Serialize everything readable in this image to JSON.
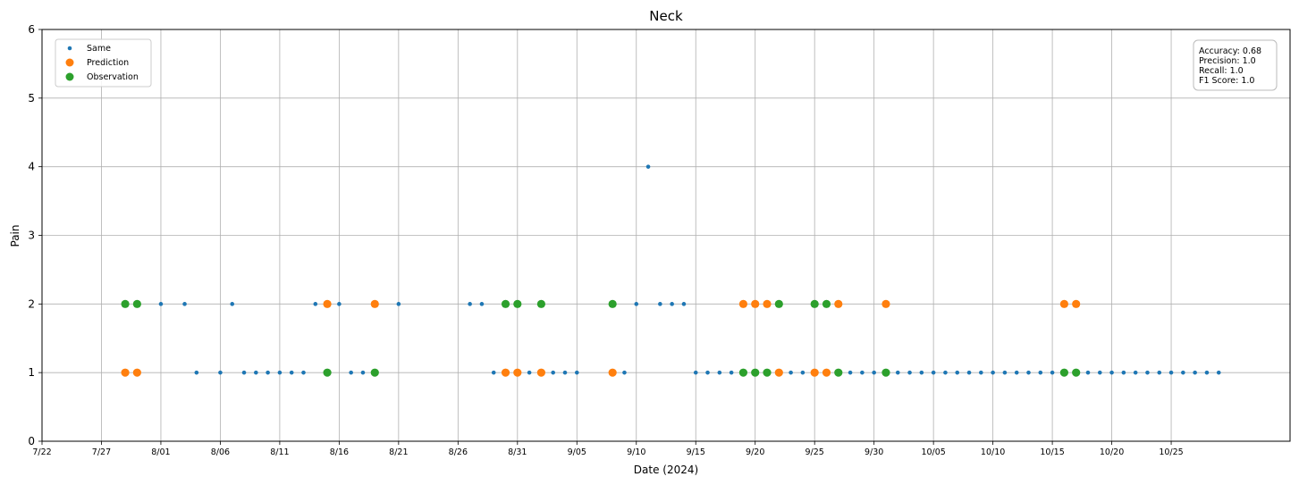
{
  "chart_data": {
    "type": "scatter",
    "title": "Neck",
    "xlabel": "Date (2024)",
    "ylabel": "Pain",
    "xlim": [
      "2024-07-22",
      "2024-11-04"
    ],
    "ylim": [
      0,
      6
    ],
    "x_ticks": [
      "2024-07-22",
      "2024-07-27",
      "2024-08-01",
      "2024-08-06",
      "2024-08-11",
      "2024-08-16",
      "2024-08-21",
      "2024-08-26",
      "2024-08-31",
      "2024-09-05",
      "2024-09-10",
      "2024-09-15",
      "2024-09-20",
      "2024-09-25",
      "2024-09-30",
      "2024-10-05",
      "2024-10-10",
      "2024-10-15",
      "2024-10-20",
      "2024-10-25"
    ],
    "x_tick_labels": [
      "7/22",
      "7/27",
      "8/01",
      "8/06",
      "8/11",
      "8/16",
      "8/21",
      "8/26",
      "8/31",
      "9/05",
      "9/10",
      "9/15",
      "9/20",
      "9/25",
      "9/30",
      "10/05",
      "10/10",
      "10/15",
      "10/20",
      "10/25"
    ],
    "y_ticks": [
      0,
      1,
      2,
      3,
      4,
      5,
      6
    ],
    "grid": true,
    "legend_position": "top-left",
    "metrics_box": {
      "position": "top-right",
      "lines": [
        "Accuracy: 0.68",
        "Precision: 1.0",
        "Recall: 1.0",
        "F1 Score: 1.0"
      ]
    },
    "series": [
      {
        "name": "Same",
        "color": "#1f77b4",
        "marker": "small",
        "points": [
          [
            "2024-08-01",
            2
          ],
          [
            "2024-08-03",
            2
          ],
          [
            "2024-08-07",
            2
          ],
          [
            "2024-08-14",
            2
          ],
          [
            "2024-08-16",
            2
          ],
          [
            "2024-08-21",
            2
          ],
          [
            "2024-08-27",
            2
          ],
          [
            "2024-08-28",
            2
          ],
          [
            "2024-09-10",
            2
          ],
          [
            "2024-09-12",
            2
          ],
          [
            "2024-09-13",
            2
          ],
          [
            "2024-09-14",
            2
          ],
          [
            "2024-09-11",
            4
          ],
          [
            "2024-08-04",
            1
          ],
          [
            "2024-08-06",
            1
          ],
          [
            "2024-08-08",
            1
          ],
          [
            "2024-08-09",
            1
          ],
          [
            "2024-08-10",
            1
          ],
          [
            "2024-08-11",
            1
          ],
          [
            "2024-08-12",
            1
          ],
          [
            "2024-08-13",
            1
          ],
          [
            "2024-08-17",
            1
          ],
          [
            "2024-08-18",
            1
          ],
          [
            "2024-08-29",
            1
          ],
          [
            "2024-09-01",
            1
          ],
          [
            "2024-09-03",
            1
          ],
          [
            "2024-09-04",
            1
          ],
          [
            "2024-09-05",
            1
          ],
          [
            "2024-09-09",
            1
          ],
          [
            "2024-09-15",
            1
          ],
          [
            "2024-09-16",
            1
          ],
          [
            "2024-09-17",
            1
          ],
          [
            "2024-09-18",
            1
          ],
          [
            "2024-09-23",
            1
          ],
          [
            "2024-09-24",
            1
          ],
          [
            "2024-09-28",
            1
          ],
          [
            "2024-09-29",
            1
          ],
          [
            "2024-09-30",
            1
          ],
          [
            "2024-10-02",
            1
          ],
          [
            "2024-10-03",
            1
          ],
          [
            "2024-10-04",
            1
          ],
          [
            "2024-10-05",
            1
          ],
          [
            "2024-10-06",
            1
          ],
          [
            "2024-10-07",
            1
          ],
          [
            "2024-10-08",
            1
          ],
          [
            "2024-10-09",
            1
          ],
          [
            "2024-10-10",
            1
          ],
          [
            "2024-10-11",
            1
          ],
          [
            "2024-10-12",
            1
          ],
          [
            "2024-10-13",
            1
          ],
          [
            "2024-10-14",
            1
          ],
          [
            "2024-10-15",
            1
          ],
          [
            "2024-10-18",
            1
          ],
          [
            "2024-10-19",
            1
          ],
          [
            "2024-10-20",
            1
          ],
          [
            "2024-10-21",
            1
          ],
          [
            "2024-10-22",
            1
          ],
          [
            "2024-10-23",
            1
          ],
          [
            "2024-10-24",
            1
          ],
          [
            "2024-10-25",
            1
          ],
          [
            "2024-10-26",
            1
          ],
          [
            "2024-10-27",
            1
          ],
          [
            "2024-10-28",
            1
          ],
          [
            "2024-10-29",
            1
          ]
        ]
      },
      {
        "name": "Prediction",
        "color": "#ff7f0e",
        "marker": "large",
        "points": [
          [
            "2024-07-29",
            1
          ],
          [
            "2024-07-30",
            1
          ],
          [
            "2024-08-15",
            2
          ],
          [
            "2024-08-19",
            2
          ],
          [
            "2024-08-30",
            1
          ],
          [
            "2024-08-31",
            1
          ],
          [
            "2024-09-02",
            1
          ],
          [
            "2024-09-08",
            1
          ],
          [
            "2024-09-19",
            2
          ],
          [
            "2024-09-20",
            2
          ],
          [
            "2024-09-21",
            2
          ],
          [
            "2024-09-22",
            1
          ],
          [
            "2024-09-25",
            1
          ],
          [
            "2024-09-26",
            1
          ],
          [
            "2024-09-27",
            2
          ],
          [
            "2024-10-01",
            2
          ],
          [
            "2024-10-16",
            2
          ],
          [
            "2024-10-17",
            2
          ]
        ]
      },
      {
        "name": "Observation",
        "color": "#2ca02c",
        "marker": "large",
        "points": [
          [
            "2024-07-29",
            2
          ],
          [
            "2024-07-30",
            2
          ],
          [
            "2024-08-15",
            1
          ],
          [
            "2024-08-19",
            1
          ],
          [
            "2024-08-30",
            2
          ],
          [
            "2024-08-31",
            2
          ],
          [
            "2024-09-02",
            2
          ],
          [
            "2024-09-08",
            2
          ],
          [
            "2024-09-19",
            1
          ],
          [
            "2024-09-20",
            1
          ],
          [
            "2024-09-21",
            1
          ],
          [
            "2024-09-22",
            2
          ],
          [
            "2024-09-25",
            2
          ],
          [
            "2024-09-26",
            2
          ],
          [
            "2024-09-27",
            1
          ],
          [
            "2024-10-01",
            1
          ],
          [
            "2024-10-16",
            1
          ],
          [
            "2024-10-17",
            1
          ]
        ]
      }
    ]
  }
}
